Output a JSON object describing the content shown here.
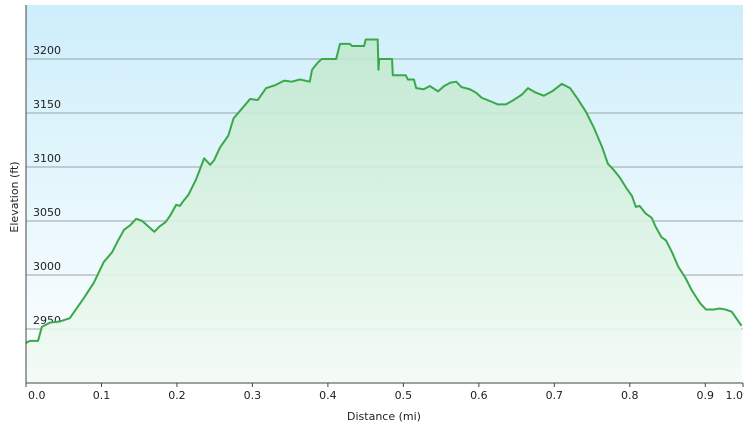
{
  "chart_data": {
    "type": "area",
    "xlabel": "Distance  (mi)",
    "ylabel": "Elevation (ft)",
    "color": "#3aa84a",
    "grid": true,
    "xlim": [
      0,
      0.95
    ],
    "ylim": [
      2900,
      3250
    ],
    "xticks": [
      {
        "value": 0,
        "label": "0.0"
      },
      0.1,
      0.2,
      0.3,
      0.4,
      0.5,
      0.6,
      0.7,
      0.8,
      0.9,
      {
        "value": 0.95,
        "label": "1.0"
      }
    ],
    "yticks": [
      2950,
      3000,
      3050,
      3100,
      3150,
      3200
    ],
    "x": [
      0,
      0.005,
      0.016,
      0.021,
      0.032,
      0.045,
      0.058,
      0.066,
      0.077,
      0.09,
      0.103,
      0.114,
      0.122,
      0.13,
      0.138,
      0.146,
      0.154,
      0.162,
      0.17,
      0.177,
      0.185,
      0.191,
      0.199,
      0.204,
      0.209,
      0.215,
      0.22,
      0.225,
      0.23,
      0.236,
      0.244,
      0.249,
      0.257,
      0.268,
      0.275,
      0.286,
      0.297,
      0.307,
      0.318,
      0.331,
      0.342,
      0.352,
      0.363,
      0.376,
      0.379,
      0.387,
      0.392,
      0.411,
      0.416,
      0.429,
      0.432,
      0.448,
      0.45,
      0.466,
      0.467,
      0.468,
      0.485,
      0.486,
      0.503,
      0.506,
      0.514,
      0.517,
      0.527,
      0.535,
      0.546,
      0.554,
      0.562,
      0.57,
      0.577,
      0.588,
      0.596,
      0.604,
      0.615,
      0.625,
      0.636,
      0.646,
      0.657,
      0.665,
      0.675,
      0.686,
      0.697,
      0.71,
      0.721,
      0.731,
      0.742,
      0.752,
      0.763,
      0.771,
      0.779,
      0.787,
      0.795,
      0.803,
      0.808,
      0.813,
      0.821,
      0.829,
      0.834,
      0.842,
      0.848,
      0.856,
      0.864,
      0.874,
      0.882,
      0.893,
      0.901,
      0.911,
      0.919,
      0.927,
      0.935,
      0.943,
      0.948
    ],
    "values": [
      2937,
      2939,
      2939,
      2952,
      2956,
      2957,
      2960,
      2968,
      2979,
      2993,
      3012,
      3021,
      3032,
      3042,
      3046,
      3052,
      3050,
      3045,
      3040,
      3045,
      3049,
      3055,
      3065,
      3064,
      3069,
      3074,
      3081,
      3088,
      3097,
      3108,
      3102,
      3106,
      3118,
      3129,
      3145,
      3154,
      3163,
      3162,
      3173,
      3176,
      3180,
      3179,
      3181,
      3179,
      3190,
      3197,
      3200,
      3200,
      3214,
      3214,
      3212,
      3212,
      3218,
      3218,
      3190,
      3200,
      3200,
      3185,
      3185,
      3181,
      3181,
      3173,
      3172,
      3175,
      3170,
      3175,
      3178,
      3179,
      3174,
      3172,
      3169,
      3164,
      3161,
      3158,
      3158,
      3162,
      3167,
      3173,
      3169,
      3166,
      3170,
      3177,
      3173,
      3163,
      3151,
      3137,
      3119,
      3103,
      3097,
      3090,
      3081,
      3073,
      3063,
      3064,
      3057,
      3053,
      3045,
      3035,
      3032,
      3021,
      3008,
      2997,
      2986,
      2974,
      2968,
      2968,
      2969,
      2968,
      2966,
      2958,
      2953
    ]
  }
}
